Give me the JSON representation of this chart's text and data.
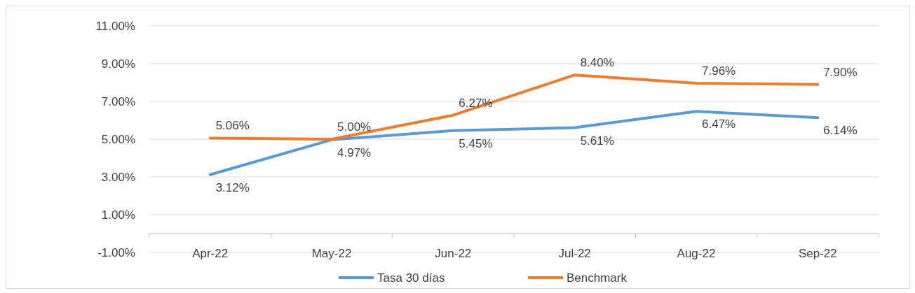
{
  "chart_data": {
    "type": "line",
    "categories": [
      "Apr-22",
      "May-22",
      "Jun-22",
      "Jul-22",
      "Aug-22",
      "Sep-22"
    ],
    "series": [
      {
        "name": "Tasa 30 días",
        "color": "#5b9bd5",
        "values": [
          3.12,
          4.97,
          5.45,
          5.61,
          6.47,
          6.14
        ],
        "value_labels": [
          "3.12%",
          "4.97%",
          "5.45%",
          "5.61%",
          "6.47%",
          "6.14%"
        ]
      },
      {
        "name": "Benchmark",
        "color": "#ed7d31",
        "values": [
          5.06,
          5.0,
          6.27,
          8.4,
          7.96,
          7.9
        ],
        "value_labels": [
          "5.06%",
          "5.00%",
          "6.27%",
          "8.40%",
          "7.96%",
          "7.90%"
        ]
      }
    ],
    "ylim": [
      -1,
      11
    ],
    "yticks": [
      {
        "value": -1,
        "label": "-1.00%"
      },
      {
        "value": 1,
        "label": "1.00%"
      },
      {
        "value": 3,
        "label": "3.00%"
      },
      {
        "value": 5,
        "label": "5.00%"
      },
      {
        "value": 7,
        "label": "7.00%"
      },
      {
        "value": 9,
        "label": "9.00%"
      },
      {
        "value": 11,
        "label": "11.00%"
      }
    ],
    "grid": "y",
    "legend": "bottom",
    "marker": "none",
    "line_style": "solid"
  }
}
